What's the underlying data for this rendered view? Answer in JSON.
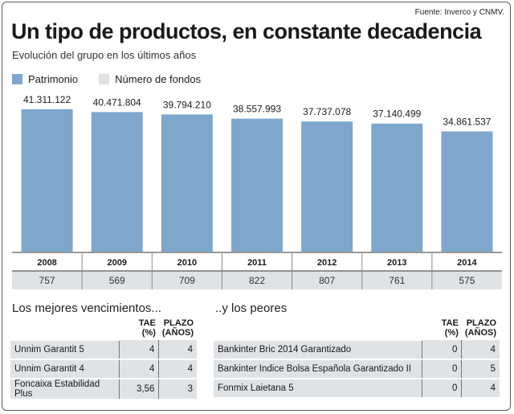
{
  "source": "Fuente: Inverco y CNMV.",
  "title": "Un tipo de productos, en constante decadencia",
  "subtitle": "Evolución del grupo en los últimos años",
  "legend": [
    {
      "label": "Patrimonio",
      "color": "#7fa7cc"
    },
    {
      "label": "Número de fondos",
      "color": "#dfe3e6"
    }
  ],
  "chart_data": {
    "type": "bar",
    "categories": [
      "2008",
      "2009",
      "2010",
      "2011",
      "2012",
      "2013",
      "2014"
    ],
    "series": [
      {
        "name": "Patrimonio",
        "values": [
          41311122,
          40471804,
          39794210,
          38557993,
          37737078,
          37140499,
          34861537
        ],
        "labels": [
          "41.311.122",
          "40.471.804",
          "39.794.210",
          "38.557.993",
          "37.737.078",
          "37.140.499",
          "34.861.537"
        ]
      },
      {
        "name": "Número de fondos",
        "values": [
          757,
          569,
          709,
          822,
          807,
          761,
          575
        ]
      }
    ],
    "ylim": [
      0,
      45000000
    ],
    "colors": {
      "bar": "#7fa7cc",
      "band": "#dfe3e6"
    }
  },
  "best": {
    "title": "Los mejores vencimientos...",
    "col_tae": "TAE (%)",
    "col_plazo_1": "PLAZO",
    "col_plazo_2": "(AÑOS)",
    "rows": [
      {
        "name": "Unnim Garantit 5",
        "tae": "4",
        "plazo": "4"
      },
      {
        "name": "Unnim Garantit 4",
        "tae": "4",
        "plazo": "4"
      },
      {
        "name": "Foncaixa Estabilidad Plus",
        "tae": "3,56",
        "plazo": "3"
      }
    ]
  },
  "worst": {
    "title": "..y los peores",
    "col_tae": "TAE (%)",
    "col_plazo_1": "PLAZO",
    "col_plazo_2": "(AÑOS)",
    "rows": [
      {
        "name": "Bankinter Bric 2014 Garantizado",
        "tae": "0",
        "plazo": "4"
      },
      {
        "name": "Bankinter Indice Bolsa Española Garantizado II",
        "tae": "0",
        "plazo": "5"
      },
      {
        "name": "Fonmix Laietana 5",
        "tae": "0",
        "plazo": "4"
      }
    ]
  }
}
